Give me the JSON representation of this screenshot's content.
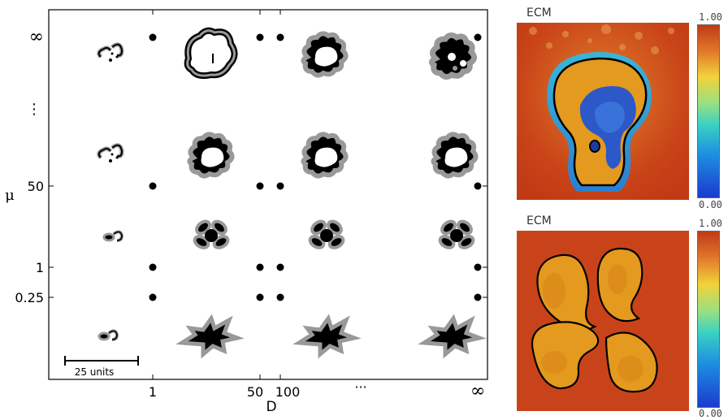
{
  "main_plot": {
    "y_axis_label": "μ",
    "x_axis_label": "D",
    "y_ticks": [
      "∞",
      "⋮",
      "50",
      "1",
      "0.25"
    ],
    "x_ticks": [
      "1",
      "50",
      "100",
      "···",
      "∞"
    ],
    "scale_bar_label": "25 units"
  },
  "ecm_top": {
    "title": "ECM",
    "cb_max": "1.00",
    "cb_min": "0.00"
  },
  "ecm_bottom": {
    "title": "ECM",
    "cb_max": "1.00",
    "cb_min": "0.00"
  },
  "colors": {
    "tumor_fill": "#000000",
    "tumor_halo": "#aaaaaa",
    "ecm_high": "#d9941c",
    "ecm_low": "#1a47c9",
    "ecm_background": "#c93a17"
  }
}
